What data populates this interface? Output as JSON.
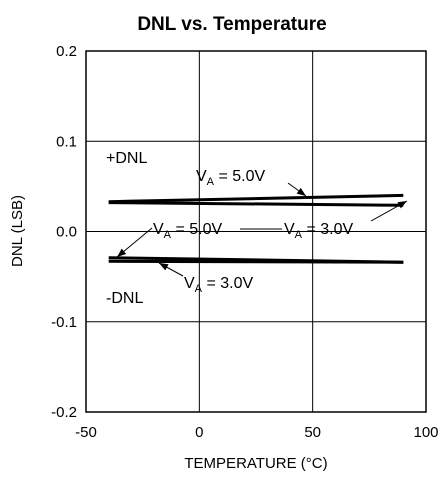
{
  "chart_data": {
    "type": "line",
    "title": "DNL vs. Temperature",
    "xlabel": "TEMPERATURE (°C)",
    "ylabel": "DNL (LSB)",
    "xlim": [
      -50,
      100
    ],
    "ylim": [
      -0.2,
      0.2
    ],
    "x_ticks": [
      -50,
      0,
      50,
      100
    ],
    "y_ticks": [
      -0.2,
      -0.1,
      0.0,
      0.1,
      0.2
    ],
    "x_tick_labels": [
      "-50",
      "0",
      "50",
      "100"
    ],
    "y_tick_labels": [
      "-0.2",
      "-0.1",
      "0.0",
      "0.1",
      "0.2"
    ],
    "grid": true,
    "series": [
      {
        "x": [
          -40,
          90
        ],
        "values": [
          0.033,
          0.04
        ]
      },
      {
        "x": [
          -40,
          90
        ],
        "values": [
          0.032,
          0.029
        ]
      },
      {
        "x": [
          -40,
          90
        ],
        "values": [
          -0.029,
          -0.034
        ]
      },
      {
        "x": [
          -40,
          90
        ],
        "values": [
          -0.033,
          -0.034
        ]
      }
    ],
    "annotations": [
      {
        "id": "pos-dnl",
        "text": "+DNL"
      },
      {
        "id": "neg-dnl",
        "text": "-DNL"
      },
      {
        "id": "va5-top",
        "main": "V",
        "sub": "A",
        "rest": " = 5.0V"
      },
      {
        "id": "va5-bot",
        "main": "V",
        "sub": "A",
        "rest": " = 5.0V"
      },
      {
        "id": "va3-top",
        "main": "V",
        "sub": "A",
        "rest": " = 3.0V"
      },
      {
        "id": "va3-bot",
        "main": "V",
        "sub": "A",
        "rest": " = 3.0V"
      }
    ]
  }
}
